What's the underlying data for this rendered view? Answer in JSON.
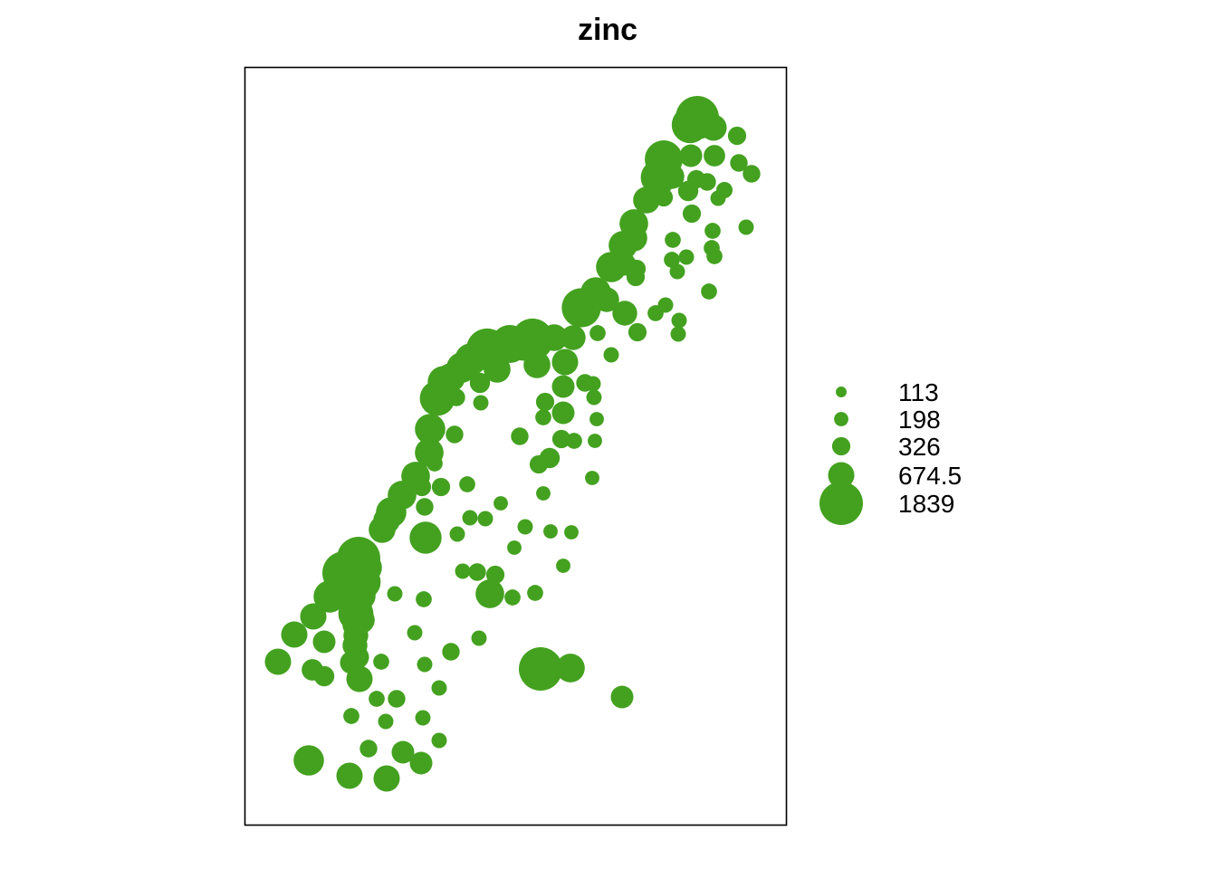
{
  "chart_data": {
    "type": "scatter",
    "title": "zinc",
    "axes_visible": false,
    "grid": false,
    "legend_placement": "right",
    "color": "#43A11F",
    "legend": {
      "values": [
        113,
        198,
        326,
        674.5,
        1839
      ],
      "labels": [
        "113",
        "198",
        "326",
        "674.5",
        "1839"
      ]
    },
    "points": [
      [
        770,
        130,
        1839
      ],
      [
        762,
        138,
        1300
      ],
      [
        788,
        141,
        674.5
      ],
      [
        814,
        150,
        326
      ],
      [
        733,
        176,
        1400
      ],
      [
        763,
        172,
        500
      ],
      [
        789,
        172,
        450
      ],
      [
        816,
        180,
        300
      ],
      [
        830,
        192,
        300
      ],
      [
        727,
        196,
        1200
      ],
      [
        742,
        195,
        600
      ],
      [
        769,
        198,
        326
      ],
      [
        760,
        211,
        400
      ],
      [
        781,
        201,
        300
      ],
      [
        800,
        210,
        260
      ],
      [
        793,
        219,
        230
      ],
      [
        714,
        221,
        700
      ],
      [
        733,
        218,
        326
      ],
      [
        764,
        236,
        326
      ],
      [
        700,
        247,
        800
      ],
      [
        700,
        263,
        700
      ],
      [
        787,
        255,
        250
      ],
      [
        824,
        251,
        230
      ],
      [
        743,
        265,
        250
      ],
      [
        786,
        274,
        250
      ],
      [
        688,
        271,
        800
      ],
      [
        789,
        283,
        250
      ],
      [
        758,
        284,
        230
      ],
      [
        742,
        287,
        250
      ],
      [
        675,
        295,
        900
      ],
      [
        703,
        297,
        326
      ],
      [
        748,
        300,
        230
      ],
      [
        690,
        292,
        500
      ],
      [
        702,
        306,
        326
      ],
      [
        658,
        323,
        900
      ],
      [
        783,
        322,
        250
      ],
      [
        670,
        331,
        600
      ],
      [
        642,
        340,
        1500
      ],
      [
        690,
        346,
        600
      ],
      [
        735,
        337,
        230
      ],
      [
        724,
        346,
        250
      ],
      [
        750,
        354,
        230
      ],
      [
        749,
        369,
        230
      ],
      [
        704,
        367,
        326
      ],
      [
        660,
        368,
        250
      ],
      [
        675,
        392,
        230
      ],
      [
        588,
        375,
        1700
      ],
      [
        633,
        373,
        600
      ],
      [
        612,
        373,
        700
      ],
      [
        563,
        380,
        1400
      ],
      [
        578,
        380,
        1100
      ],
      [
        538,
        386,
        1700
      ],
      [
        520,
        397,
        1000
      ],
      [
        510,
        406,
        900
      ],
      [
        549,
        408,
        700
      ],
      [
        593,
        403,
        700
      ],
      [
        624,
        400,
        674.5
      ],
      [
        498,
        417,
        800
      ],
      [
        490,
        422,
        1000
      ],
      [
        483,
        440,
        1200
      ],
      [
        530,
        423,
        400
      ],
      [
        504,
        439,
        300
      ],
      [
        531,
        445,
        230
      ],
      [
        655,
        424,
        230
      ],
      [
        622,
        427,
        500
      ],
      [
        646,
        423,
        300
      ],
      [
        656,
        439,
        230
      ],
      [
        602,
        444,
        326
      ],
      [
        622,
        456,
        500
      ],
      [
        600,
        461,
        250
      ],
      [
        659,
        463,
        200
      ],
      [
        475,
        474,
        900
      ],
      [
        502,
        480,
        300
      ],
      [
        574,
        482,
        300
      ],
      [
        620,
        485,
        326
      ],
      [
        634,
        487,
        250
      ],
      [
        657,
        487,
        200
      ],
      [
        474,
        500,
        800
      ],
      [
        607,
        506,
        400
      ],
      [
        595,
        513,
        326
      ],
      [
        480,
        512,
        250
      ],
      [
        459,
        526,
        800
      ],
      [
        654,
        528,
        200
      ],
      [
        516,
        535,
        250
      ],
      [
        466,
        538,
        326
      ],
      [
        487,
        538,
        326
      ],
      [
        444,
        547,
        800
      ],
      [
        600,
        545,
        200
      ],
      [
        469,
        560,
        300
      ],
      [
        553,
        556,
        200
      ],
      [
        432,
        566,
        900
      ],
      [
        427,
        575,
        700
      ],
      [
        519,
        572,
        230
      ],
      [
        536,
        573,
        230
      ],
      [
        422,
        585,
        700
      ],
      [
        470,
        594,
        1000
      ],
      [
        580,
        582,
        230
      ],
      [
        608,
        587,
        200
      ],
      [
        631,
        588,
        200
      ],
      [
        505,
        590,
        230
      ],
      [
        568,
        605,
        200
      ],
      [
        396,
        617,
        1839
      ],
      [
        380,
        633,
        1839
      ],
      [
        405,
        627,
        900
      ],
      [
        622,
        625,
        200
      ],
      [
        511,
        631,
        230
      ],
      [
        527,
        632,
        300
      ],
      [
        547,
        635,
        326
      ],
      [
        386,
        648,
        1800
      ],
      [
        401,
        643,
        1200
      ],
      [
        364,
        659,
        1000
      ],
      [
        541,
        656,
        800
      ],
      [
        398,
        658,
        900
      ],
      [
        392,
        668,
        900
      ],
      [
        436,
        656,
        230
      ],
      [
        468,
        662,
        250
      ],
      [
        566,
        660,
        250
      ],
      [
        591,
        655,
        250
      ],
      [
        393,
        678,
        1200
      ],
      [
        399,
        685,
        700
      ],
      [
        346,
        681,
        674.5
      ],
      [
        393,
        690,
        700
      ],
      [
        325,
        701,
        674.5
      ],
      [
        393,
        702,
        600
      ],
      [
        458,
        699,
        230
      ],
      [
        358,
        709,
        500
      ],
      [
        392,
        713,
        600
      ],
      [
        498,
        720,
        300
      ],
      [
        529,
        705,
        230
      ],
      [
        395,
        726,
        500
      ],
      [
        307,
        731,
        674.5
      ],
      [
        345,
        740,
        450
      ],
      [
        358,
        747,
        400
      ],
      [
        388,
        732,
        500
      ],
      [
        397,
        750,
        674.5
      ],
      [
        421,
        731,
        250
      ],
      [
        469,
        734,
        230
      ],
      [
        597,
        739,
        1839
      ],
      [
        630,
        738,
        800
      ],
      [
        485,
        760,
        230
      ],
      [
        416,
        772,
        250
      ],
      [
        438,
        772,
        300
      ],
      [
        687,
        770,
        500
      ],
      [
        388,
        791,
        250
      ],
      [
        426,
        797,
        230
      ],
      [
        467,
        793,
        230
      ],
      [
        407,
        827,
        300
      ],
      [
        445,
        831,
        500
      ],
      [
        485,
        818,
        230
      ],
      [
        341,
        840,
        900
      ],
      [
        465,
        843,
        500
      ],
      [
        386,
        857,
        674.5
      ],
      [
        427,
        860,
        674.5
      ]
    ]
  }
}
